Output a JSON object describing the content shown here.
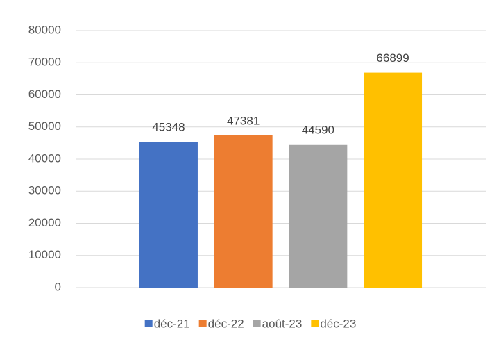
{
  "chart_data": {
    "type": "bar",
    "categories": [
      null
    ],
    "series": [
      {
        "name": "déc-21",
        "color": "#4472c4",
        "values": [
          45348
        ]
      },
      {
        "name": "déc-22",
        "color": "#ed7d31",
        "values": [
          47381
        ]
      },
      {
        "name": "août-23",
        "color": "#a5a5a5",
        "values": [
          44590
        ]
      },
      {
        "name": "déc-23",
        "color": "#ffc000",
        "values": [
          66899
        ]
      }
    ],
    "ylim": [
      0,
      80000
    ],
    "yticks": [
      0,
      10000,
      20000,
      30000,
      40000,
      50000,
      60000,
      70000,
      80000
    ],
    "grid": true,
    "legend": "bottom"
  }
}
